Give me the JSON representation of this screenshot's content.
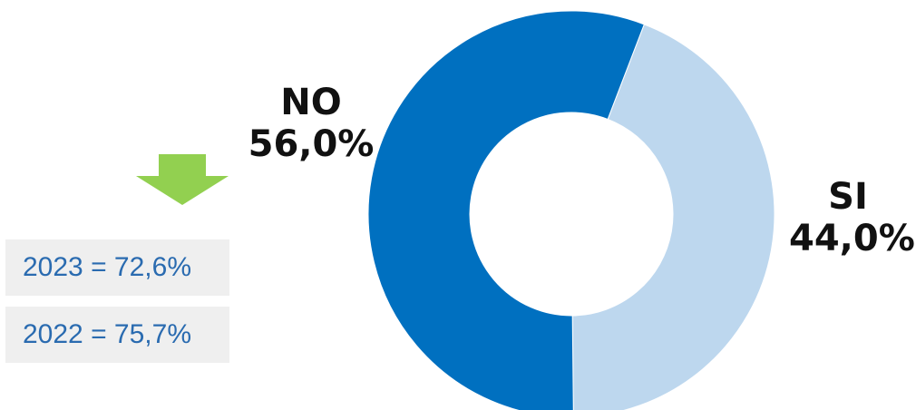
{
  "chart_data": {
    "type": "pie",
    "donut": true,
    "slices": [
      {
        "label": "SI",
        "value": 44.0,
        "display": "44,0%",
        "color": "#bdd7ee"
      },
      {
        "label": "NO",
        "value": 56.0,
        "display": "56,0%",
        "color": "#0070c0"
      }
    ],
    "title": ""
  },
  "comparisons": [
    {
      "text": "2023 = 72,6%"
    },
    {
      "text": "2022 = 75,7%"
    }
  ],
  "colors": {
    "arrow": "#92d050",
    "box_bg": "#efefef",
    "box_text": "#2a6bb0"
  }
}
